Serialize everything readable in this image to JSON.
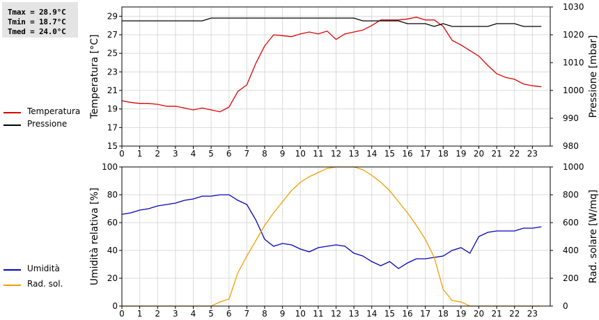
{
  "stats": {
    "tmax": "Tmax = 28.9°C",
    "tmin": "Tmin = 18.7°C",
    "tmed": "Tmed = 24.0°C"
  },
  "legend_top": [
    {
      "label": "Temperatura",
      "color": "#dd0000"
    },
    {
      "label": "Pressione",
      "color": "#000000"
    }
  ],
  "legend_bottom": [
    {
      "label": "Umidità",
      "color": "#0000bb"
    },
    {
      "label": "Rad. sol.",
      "color": "#f0a000"
    }
  ],
  "chart_data": [
    {
      "type": "line",
      "grid": true,
      "xlim": [
        0,
        24
      ],
      "xticks": [
        "0",
        "1",
        "2",
        "3",
        "4",
        "5",
        "6",
        "7",
        "8",
        "9",
        "10",
        "11",
        "12",
        "13",
        "14",
        "15",
        "16",
        "17",
        "18",
        "19",
        "20",
        "21",
        "22",
        "23"
      ],
      "ylabel": "Temperatura [°C]",
      "ylim": [
        15,
        30
      ],
      "yticks": [
        "15",
        "17",
        "19",
        "21",
        "23",
        "25",
        "27",
        "29"
      ],
      "y2label": "Pressione [mbar]",
      "y2lim": [
        980,
        1030
      ],
      "y2ticks": [
        "980",
        "990",
        "1000",
        "1010",
        "1020",
        "1030"
      ],
      "series": [
        {
          "name": "Temperatura",
          "axis": "left",
          "color": "#dd0000",
          "x": [
            0,
            0.5,
            1,
            1.5,
            2,
            2.5,
            3,
            3.5,
            4,
            4.5,
            5,
            5.5,
            6,
            6.5,
            7,
            7.5,
            8,
            8.5,
            9,
            9.5,
            10,
            10.5,
            11,
            11.5,
            12,
            12.5,
            13,
            13.5,
            14,
            14.5,
            15,
            15.5,
            16,
            16.5,
            17,
            17.5,
            18,
            18.5,
            19,
            19.5,
            20,
            20.5,
            21,
            21.5,
            22,
            22.5,
            23,
            23.5
          ],
          "values": [
            19.9,
            19.7,
            19.6,
            19.6,
            19.5,
            19.3,
            19.3,
            19.1,
            18.9,
            19.1,
            18.9,
            18.7,
            19.2,
            20.9,
            21.6,
            23.9,
            25.8,
            27.0,
            26.9,
            26.8,
            27.1,
            27.3,
            27.1,
            27.4,
            26.5,
            27.1,
            27.3,
            27.5,
            28.0,
            28.6,
            28.6,
            28.6,
            28.7,
            28.9,
            28.6,
            28.6,
            27.9,
            26.4,
            25.9,
            25.3,
            24.7,
            23.7,
            22.8,
            22.4,
            22.2,
            21.7,
            21.5,
            21.4
          ]
        },
        {
          "name": "Pressione",
          "axis": "right",
          "color": "#000000",
          "x": [
            0,
            0.5,
            1,
            1.5,
            2,
            2.5,
            3,
            3.5,
            4,
            4.5,
            5,
            5.5,
            6,
            6.5,
            7,
            7.5,
            8,
            8.5,
            9,
            9.5,
            10,
            10.5,
            11,
            11.5,
            12,
            12.5,
            13,
            13.5,
            14,
            14.5,
            15,
            15.5,
            16,
            16.5,
            17,
            17.5,
            18,
            18.5,
            19,
            19.5,
            20,
            20.5,
            21,
            21.5,
            22,
            22.5,
            23,
            23.5
          ],
          "values": [
            1025,
            1025,
            1025,
            1025,
            1025,
            1025,
            1025,
            1025,
            1025,
            1025,
            1026,
            1026,
            1026,
            1026,
            1026,
            1026,
            1026,
            1026,
            1026,
            1026,
            1026,
            1026,
            1026,
            1026,
            1026,
            1026,
            1026,
            1025,
            1025,
            1025,
            1025,
            1025,
            1024,
            1024,
            1024,
            1023,
            1024,
            1023,
            1023,
            1023,
            1023,
            1023,
            1024,
            1024,
            1024,
            1023,
            1023,
            1023
          ]
        }
      ]
    },
    {
      "type": "line",
      "grid": true,
      "xlim": [
        0,
        24
      ],
      "xticks": [
        "0",
        "1",
        "2",
        "3",
        "4",
        "5",
        "6",
        "7",
        "8",
        "9",
        "10",
        "11",
        "12",
        "13",
        "14",
        "15",
        "16",
        "17",
        "18",
        "19",
        "20",
        "21",
        "22",
        "23"
      ],
      "ylabel": "Umidità relativa [%]",
      "ylim": [
        0,
        100
      ],
      "yticks": [
        "0",
        "20",
        "40",
        "60",
        "80",
        "100"
      ],
      "y2label": "Rad. solare [W/mq]",
      "y2lim": [
        0,
        1000
      ],
      "y2ticks": [
        "0",
        "200",
        "400",
        "600",
        "800",
        "1000"
      ],
      "series": [
        {
          "name": "Umidità",
          "axis": "left",
          "color": "#0000bb",
          "x": [
            0,
            0.5,
            1,
            1.5,
            2,
            2.5,
            3,
            3.5,
            4,
            4.5,
            5,
            5.5,
            6,
            6.5,
            7,
            7.5,
            8,
            8.5,
            9,
            9.5,
            10,
            10.5,
            11,
            11.5,
            12,
            12.5,
            13,
            13.5,
            14,
            14.5,
            15,
            15.5,
            16,
            16.5,
            17,
            17.5,
            18,
            18.5,
            19,
            19.5,
            20,
            20.5,
            21,
            21.5,
            22,
            22.5,
            23,
            23.5
          ],
          "values": [
            66,
            67,
            69,
            70,
            72,
            73,
            74,
            76,
            77,
            79,
            79,
            80,
            80,
            76,
            73,
            62,
            48,
            43,
            45,
            44,
            41,
            39,
            42,
            43,
            44,
            43,
            38,
            36,
            32,
            29,
            32,
            27,
            31,
            34,
            34,
            35,
            36,
            40,
            42,
            38,
            50,
            53,
            54,
            54,
            54,
            56,
            56,
            57
          ]
        },
        {
          "name": "Rad. sol.",
          "axis": "right",
          "color": "#f0a000",
          "x": [
            0,
            0.5,
            1,
            1.5,
            2,
            2.5,
            3,
            3.5,
            4,
            4.5,
            5,
            5.5,
            6,
            6.5,
            7,
            7.5,
            8,
            8.5,
            9,
            9.5,
            10,
            10.5,
            11,
            11.5,
            12,
            12.5,
            13,
            13.5,
            14,
            14.5,
            15,
            15.5,
            16,
            16.5,
            17,
            17.5,
            18,
            18.5,
            19,
            19.5,
            20,
            20.5,
            21,
            21.5,
            22,
            22.5,
            23,
            23.5
          ],
          "values": [
            0,
            0,
            0,
            0,
            0,
            0,
            0,
            0,
            0,
            0,
            0,
            30,
            50,
            240,
            360,
            470,
            580,
            670,
            750,
            830,
            890,
            930,
            960,
            990,
            1000,
            1000,
            1000,
            980,
            940,
            890,
            830,
            750,
            670,
            580,
            480,
            350,
            120,
            40,
            30,
            0,
            0,
            0,
            0,
            0,
            0,
            0,
            0,
            0
          ]
        }
      ]
    }
  ]
}
